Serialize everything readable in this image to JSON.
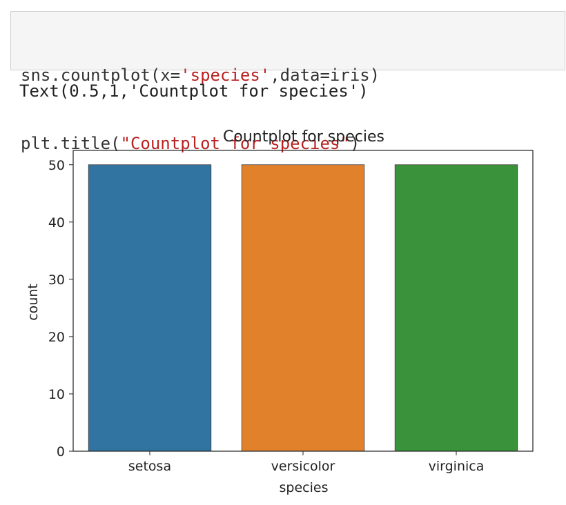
{
  "code": {
    "line1_prefix": "sns.countplot(x=",
    "line1_str": "'species'",
    "line1_suffix": ",data=iris)",
    "line2_prefix": "plt.title(",
    "line2_str": "\"Countplot for species\"",
    "line2_suffix": ")"
  },
  "output": {
    "text": "Text(0.5,1,'Countplot for species')"
  },
  "chart_data": {
    "type": "bar",
    "title": "Countplot for species",
    "xlabel": "species",
    "ylabel": "count",
    "categories": [
      "setosa",
      "versicolor",
      "virginica"
    ],
    "values": [
      50,
      50,
      50
    ],
    "colors": [
      "#3274a1",
      "#e1812c",
      "#3a923a"
    ],
    "ylim": [
      0,
      52.5
    ],
    "yticks": [
      0,
      10,
      20,
      30,
      40,
      50
    ],
    "grid": false
  }
}
